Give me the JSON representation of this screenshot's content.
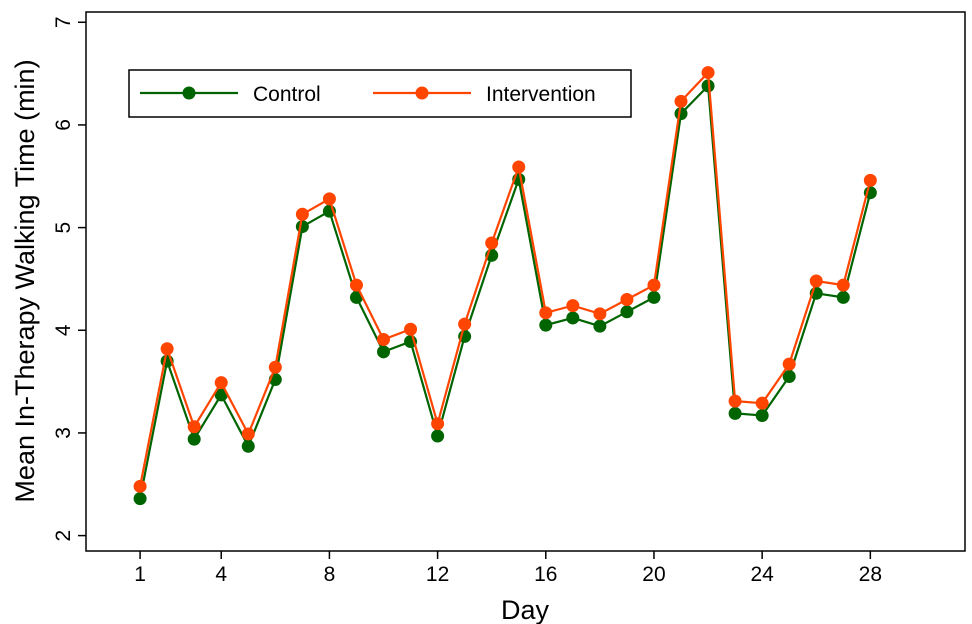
{
  "chart_data": {
    "type": "line",
    "title": "",
    "xlabel": "Day",
    "ylabel": "Mean In-Therapy Walking Time (min)",
    "xlim": [
      -1,
      31.5
    ],
    "ylim": [
      1.85,
      7.1
    ],
    "xticks": [
      1,
      4,
      8,
      12,
      16,
      20,
      24,
      28
    ],
    "yticks": [
      2,
      3,
      4,
      5,
      6,
      7
    ],
    "grid": false,
    "legend_position": "top-left",
    "x": [
      1,
      2,
      3,
      4,
      5,
      6,
      7,
      8,
      9,
      10,
      11,
      12,
      13,
      14,
      15,
      16,
      17,
      18,
      19,
      20,
      21,
      22,
      23,
      24,
      25,
      26,
      27,
      28
    ],
    "series": [
      {
        "name": "Control",
        "color": "#006400",
        "values": [
          2.36,
          3.7,
          2.94,
          3.37,
          2.87,
          3.52,
          5.01,
          5.16,
          4.32,
          3.79,
          3.89,
          2.97,
          3.94,
          4.73,
          5.47,
          4.05,
          4.12,
          4.04,
          4.18,
          4.32,
          6.11,
          6.38,
          3.19,
          3.17,
          3.55,
          4.36,
          4.32,
          5.34
        ]
      },
      {
        "name": "Intervention",
        "color": "#FF4500",
        "values": [
          2.48,
          3.82,
          3.06,
          3.49,
          2.99,
          3.64,
          5.13,
          5.28,
          4.44,
          3.91,
          4.01,
          3.09,
          4.06,
          4.85,
          5.59,
          4.17,
          4.24,
          4.16,
          4.3,
          4.44,
          6.23,
          6.51,
          3.31,
          3.29,
          3.67,
          4.48,
          4.44,
          5.46
        ]
      }
    ]
  }
}
